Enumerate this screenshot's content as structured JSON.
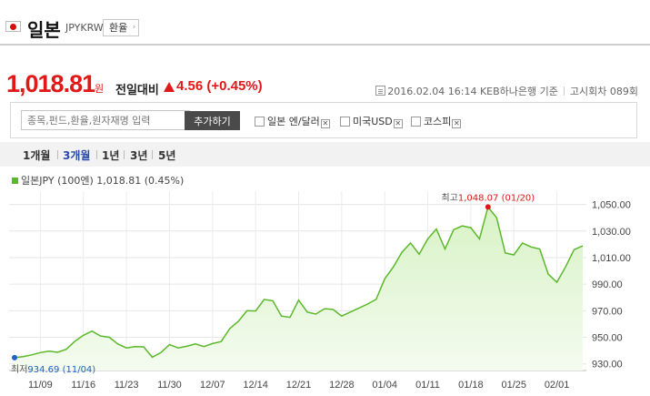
{
  "header": {
    "country": "일본",
    "code": "JPYKRW",
    "fx_button": "환율",
    "flag_icon": "japan-flag-icon"
  },
  "quote": {
    "price": "1,018.81",
    "unit": "원",
    "vs_label": "전일대비",
    "change": "4.56 (+0.45%)",
    "direction_icon": "triangle-up-icon",
    "color": "#e01818"
  },
  "meta": {
    "timestamp": "2016.02.04 16:14",
    "source": "KEB하나은행 기준",
    "notice": "고시회차 089회"
  },
  "search": {
    "placeholder": "종목,펀드,환율,원자재명 입력",
    "add_button": "추가하기",
    "compare": [
      {
        "label": "일본 엔/달러"
      },
      {
        "label": "미국USD"
      },
      {
        "label": "코스피"
      }
    ]
  },
  "periods": [
    {
      "label": "1개월",
      "active": false
    },
    {
      "label": "3개월",
      "active": true
    },
    {
      "label": "1년",
      "active": false
    },
    {
      "label": "3년",
      "active": false
    },
    {
      "label": "5년",
      "active": false
    }
  ],
  "legend": {
    "label": "일본JPY (100엔) 1,018.81 (0.45%)",
    "color": "#5bb82a"
  },
  "chart_data": {
    "type": "area",
    "series": [
      {
        "name": "일본JPY (100엔)",
        "values": [
          934.69,
          935.5,
          936.8,
          938.5,
          939.5,
          938.7,
          941.0,
          947.0,
          951.5,
          954.7,
          951.0,
          950.0,
          945.0,
          942.0,
          943.0,
          942.8,
          935.0,
          938.5,
          944.5,
          942.0,
          943.2,
          945.0,
          943.0,
          945.3,
          946.8,
          956.5,
          962.0,
          970.0,
          969.8,
          978.5,
          977.5,
          966.0,
          965.0,
          978.0,
          969.0,
          967.5,
          971.5,
          971.0,
          966.0,
          969.0,
          972.0,
          975.0,
          978.5,
          994.0,
          1003.0,
          1014.0,
          1021.0,
          1012.5,
          1024.0,
          1031.5,
          1016.5,
          1031.0,
          1033.8,
          1032.5,
          1024.0,
          1048.07,
          1040.0,
          1013.5,
          1012.0,
          1021.0,
          1018.0,
          1016.5,
          997.5,
          991.5,
          1003.0,
          1016.0,
          1018.81
        ]
      }
    ],
    "x_ticks": [
      "11/09",
      "11/16",
      "11/23",
      "11/30",
      "12/07",
      "12/14",
      "12/21",
      "12/28",
      "01/04",
      "01/11",
      "01/18",
      "01/25",
      "02/01"
    ],
    "y_ticks": [
      "930.00",
      "950.00",
      "970.00",
      "990.00",
      "1,010.00",
      "1,030.00",
      "1,050.00"
    ],
    "ylim": [
      925,
      1060
    ],
    "max": {
      "label": "최고",
      "value": "1,048.07",
      "date": "(01/20)"
    },
    "min": {
      "label": "최저",
      "value": "934.69",
      "date": "(11/04)"
    },
    "line_color": "#5bb82a",
    "fill_color": "#d8f2c6",
    "max_marker_color": "#e01818",
    "min_marker_color": "#1e62c8",
    "grid": true
  }
}
